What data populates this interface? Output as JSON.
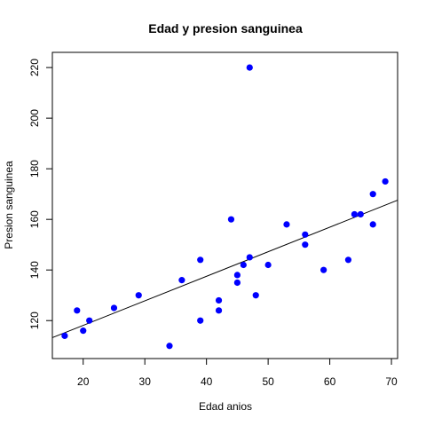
{
  "chart_data": {
    "type": "scatter",
    "title": "Edad y presion sanguinea",
    "xlabel": "Edad anios",
    "ylabel": "Presion sanguinea",
    "xlim": [
      15,
      71
    ],
    "ylim": [
      105,
      226
    ],
    "xticks": [
      20,
      30,
      40,
      50,
      60,
      70
    ],
    "yticks": [
      120,
      140,
      160,
      180,
      200,
      220
    ],
    "grid": false,
    "point_color": "#0000ff",
    "line_color": "#000000",
    "points": [
      {
        "x": 17,
        "y": 114
      },
      {
        "x": 19,
        "y": 124
      },
      {
        "x": 20,
        "y": 116
      },
      {
        "x": 21,
        "y": 120
      },
      {
        "x": 25,
        "y": 125
      },
      {
        "x": 29,
        "y": 130
      },
      {
        "x": 34,
        "y": 110
      },
      {
        "x": 36,
        "y": 136
      },
      {
        "x": 39,
        "y": 144
      },
      {
        "x": 39,
        "y": 120
      },
      {
        "x": 42,
        "y": 124
      },
      {
        "x": 42,
        "y": 128
      },
      {
        "x": 44,
        "y": 160
      },
      {
        "x": 45,
        "y": 138
      },
      {
        "x": 45,
        "y": 135
      },
      {
        "x": 46,
        "y": 142
      },
      {
        "x": 47,
        "y": 220
      },
      {
        "x": 47,
        "y": 145
      },
      {
        "x": 48,
        "y": 130
      },
      {
        "x": 50,
        "y": 142
      },
      {
        "x": 53,
        "y": 158
      },
      {
        "x": 56,
        "y": 154
      },
      {
        "x": 56,
        "y": 150
      },
      {
        "x": 59,
        "y": 140
      },
      {
        "x": 63,
        "y": 144
      },
      {
        "x": 64,
        "y": 162
      },
      {
        "x": 65,
        "y": 162
      },
      {
        "x": 67,
        "y": 170
      },
      {
        "x": 67,
        "y": 158
      },
      {
        "x": 69,
        "y": 175
      }
    ],
    "fit_line": {
      "intercept": 98.71,
      "slope": 0.97
    }
  }
}
